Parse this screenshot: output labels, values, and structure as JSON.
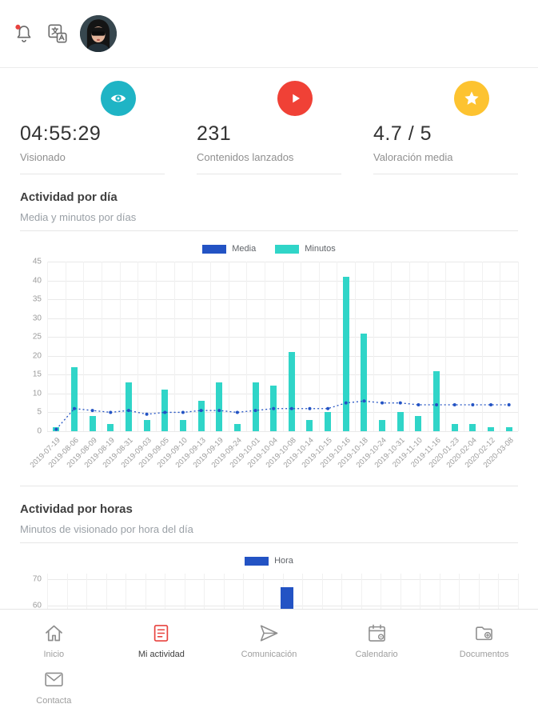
{
  "topbar": {
    "icons": [
      "bell-icon",
      "translate-icon",
      "avatar"
    ]
  },
  "stats": [
    {
      "value": "04:55:29",
      "label": "Visionado",
      "icon": "eye-icon",
      "color": "#1fb4c5"
    },
    {
      "value": "231",
      "label": "Contenidos lanzados",
      "icon": "play-icon",
      "color": "#f04136"
    },
    {
      "value": "4.7 / 5",
      "label": "Valoración media",
      "icon": "star-icon",
      "color": "#fdc330"
    }
  ],
  "sections": {
    "daily": {
      "title": "Actividad por día",
      "subtitle": "Media y minutos por días"
    },
    "hourly": {
      "title": "Actividad por horas",
      "subtitle": "Minutos de visionado por hora del día"
    }
  },
  "chart_data": [
    {
      "type": "bar",
      "title": "Actividad por día",
      "legend": [
        {
          "name": "Media",
          "color": "#2353c4",
          "style": "dotted-line"
        },
        {
          "name": "Minutos",
          "color": "#30d5c8",
          "style": "bar"
        }
      ],
      "legend_position": "top",
      "grid": true,
      "ylim": [
        0,
        45
      ],
      "yticks": [
        0,
        5,
        10,
        15,
        20,
        25,
        30,
        35,
        40,
        45
      ],
      "categories": [
        "2019-07-19",
        "2019-08-06",
        "2019-08-09",
        "2019-08-19",
        "2019-08-31",
        "2019-09-03",
        "2019-09-05",
        "2019-09-10",
        "2019-09-13",
        "2019-09-19",
        "2019-09-24",
        "2019-10-01",
        "2019-10-04",
        "2019-10-08",
        "2019-10-14",
        "2019-10-15",
        "2019-10-16",
        "2019-10-18",
        "2019-10-24",
        "2019-10-31",
        "2019-11-10",
        "2019-11-16",
        "2020-01-23",
        "2020-02-04",
        "2020-02-12",
        "2020-03-08"
      ],
      "series": [
        {
          "name": "Media",
          "type": "line",
          "values": [
            0.5,
            6,
            5.5,
            5,
            5.5,
            4.5,
            5,
            5,
            5.5,
            5.5,
            5,
            5.5,
            6,
            6,
            6,
            6,
            7.5,
            8,
            7.5,
            7.5,
            7,
            7,
            7,
            7,
            7,
            7
          ]
        },
        {
          "name": "Minutos",
          "type": "bar",
          "values": [
            1,
            17,
            4,
            2,
            13,
            3,
            11,
            3,
            8,
            13,
            2,
            13,
            12,
            21,
            3,
            5,
            41,
            26,
            3,
            5,
            4,
            16,
            2,
            2,
            1,
            1
          ]
        }
      ]
    },
    {
      "type": "bar",
      "title": "Actividad por horas",
      "legend": [
        {
          "name": "Hora",
          "color": "#2353c4",
          "style": "bar"
        }
      ],
      "legend_position": "top",
      "grid": true,
      "visible_yticks": [
        70,
        60
      ],
      "visible_bars": [
        {
          "approx_value": 67,
          "center_fraction": 0.51
        }
      ],
      "note": "chart partially cut off by bottom navigation"
    }
  ],
  "nav": {
    "active_color": "#e8433f",
    "items": [
      {
        "label": "Inicio",
        "icon": "home-icon",
        "active": false
      },
      {
        "label": "Mi actividad",
        "icon": "activity-icon",
        "active": true
      },
      {
        "label": "Comunicación",
        "icon": "paper-plane-icon",
        "active": false
      },
      {
        "label": "Calendario",
        "icon": "calendar-icon",
        "active": false
      },
      {
        "label": "Documentos",
        "icon": "documents-icon",
        "active": false
      },
      {
        "label": "Contacta",
        "icon": "email-icon",
        "active": false
      }
    ]
  },
  "colors": {
    "teal": "#1fb4c5",
    "turquoise": "#30d5c8",
    "blue": "#2353c4",
    "red": "#f04136",
    "yellow": "#fdc330",
    "notification_red": "#e8433f",
    "divider": "#e7e7e7"
  }
}
